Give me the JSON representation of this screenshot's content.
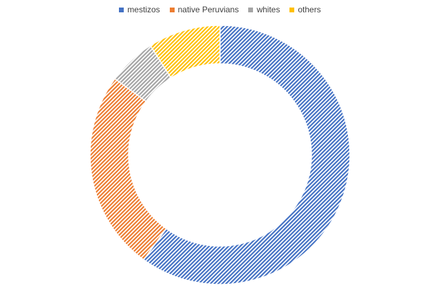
{
  "chart_data": {
    "type": "pie",
    "style": "doughnut",
    "legend_position": "top",
    "categories": [
      "mestizos",
      "native Peruvians",
      "whites",
      "others"
    ],
    "values": [
      60,
      25,
      6,
      9
    ],
    "unit": "%",
    "colors": [
      "#4472C4",
      "#ED7D31",
      "#A5A5A5",
      "#FFC000"
    ],
    "fill_pattern": "diagonal-hatch"
  }
}
